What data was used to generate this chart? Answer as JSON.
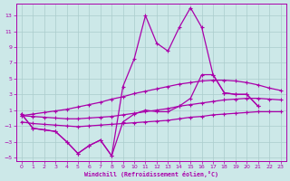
{
  "xlabel": "Windchill (Refroidissement éolien,°C)",
  "x_all": [
    0,
    1,
    2,
    3,
    4,
    5,
    6,
    7,
    8,
    9,
    10,
    11,
    12,
    13,
    14,
    15,
    16,
    17,
    18,
    19,
    20,
    21,
    22,
    23
  ],
  "line_jagged": {
    "x": [
      0,
      1,
      2,
      3,
      4,
      5,
      6,
      7,
      8,
      9,
      10,
      11,
      12,
      13,
      14,
      15,
      16,
      17,
      18,
      19,
      20,
      21
    ],
    "y": [
      0.5,
      -1.3,
      -1.5,
      -1.7,
      -3.0,
      -4.5,
      -3.5,
      -2.8,
      -4.8,
      4.0,
      7.5,
      13.0,
      9.5,
      8.5,
      11.5,
      14.0,
      11.5,
      5.5,
      3.2,
      3.0,
      3.0,
      1.5
    ]
  },
  "line_mid_jagged": {
    "x": [
      0,
      1,
      2,
      3,
      4,
      5,
      6,
      7,
      8,
      9,
      10,
      11,
      12,
      13,
      14,
      15,
      16,
      17,
      18,
      19,
      20,
      21
    ],
    "y": [
      0.5,
      -1.3,
      -1.5,
      -1.7,
      -3.0,
      -4.5,
      -3.5,
      -2.8,
      -4.8,
      -0.5,
      0.5,
      1.0,
      0.8,
      0.8,
      1.5,
      2.5,
      5.5,
      5.5,
      3.2,
      3.0,
      3.0,
      1.5
    ]
  },
  "line_smooth_upper": [
    0.3,
    0.5,
    0.7,
    0.9,
    1.1,
    1.4,
    1.7,
    2.0,
    2.4,
    2.7,
    3.1,
    3.4,
    3.7,
    4.0,
    4.3,
    4.5,
    4.7,
    4.8,
    4.8,
    4.7,
    4.5,
    4.2,
    3.8,
    3.5
  ],
  "line_smooth_lower": [
    0.3,
    0.2,
    0.1,
    0.0,
    -0.1,
    -0.1,
    0.0,
    0.1,
    0.2,
    0.4,
    0.6,
    0.8,
    1.0,
    1.2,
    1.5,
    1.7,
    1.9,
    2.1,
    2.3,
    2.4,
    2.5,
    2.5,
    2.4,
    2.3
  ],
  "line_bottom": [
    -0.5,
    -0.7,
    -0.8,
    -0.9,
    -1.0,
    -1.1,
    -1.0,
    -0.9,
    -0.8,
    -0.7,
    -0.6,
    -0.5,
    -0.4,
    -0.3,
    -0.1,
    0.1,
    0.2,
    0.4,
    0.5,
    0.6,
    0.7,
    0.8,
    0.8,
    0.8
  ],
  "ylim": [
    -5.5,
    14.5
  ],
  "xlim": [
    -0.5,
    23.5
  ],
  "yticks": [
    -5,
    -3,
    -1,
    1,
    3,
    5,
    7,
    9,
    11,
    13
  ],
  "xticks": [
    0,
    1,
    2,
    3,
    4,
    5,
    6,
    7,
    8,
    9,
    10,
    11,
    12,
    13,
    14,
    15,
    16,
    17,
    18,
    19,
    20,
    21,
    22,
    23
  ],
  "line_color": "#aa00aa",
  "bg_color": "#cce8e8",
  "grid_color": "#aacccc"
}
